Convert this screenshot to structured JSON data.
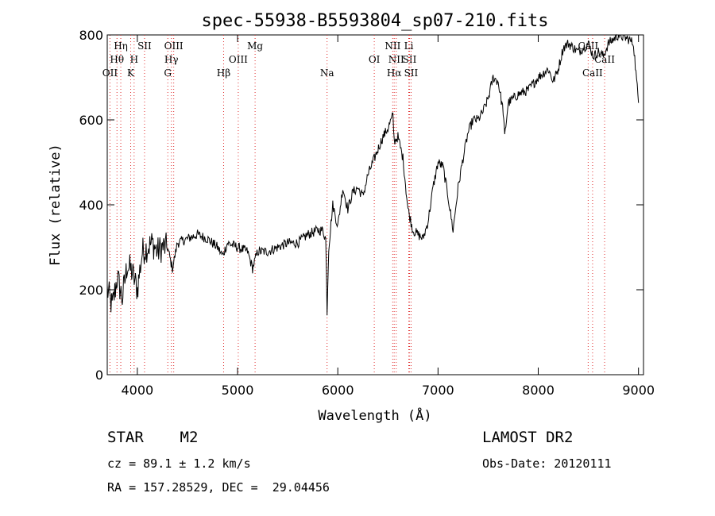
{
  "chart_data": {
    "type": "line",
    "title": "spec-55938-B5593804_sp07-210.fits",
    "xlabel": "Wavelength (Å)",
    "ylabel": "Flux (relative)",
    "xlim": [
      3700,
      9050
    ],
    "ylim": [
      0,
      800
    ],
    "xticks": [
      4000,
      5000,
      6000,
      7000,
      8000,
      9000
    ],
    "yticks": [
      0,
      200,
      400,
      600,
      800
    ],
    "grid": false,
    "legend": "none",
    "series": [
      {
        "x": [
          3700,
          3750,
          3800,
          3850,
          3900,
          3950,
          4000,
          4050,
          4100,
          4150,
          4200,
          4250,
          4300,
          4350,
          4400,
          4500,
          4600,
          4700,
          4800,
          4850,
          4900,
          5000,
          5100,
          5150,
          5175,
          5200,
          5300,
          5400,
          5500,
          5600,
          5700,
          5800,
          5850,
          5880,
          5893,
          5910,
          5950,
          6000,
          6050,
          6100,
          6150,
          6200,
          6250,
          6300,
          6400,
          6450,
          6500,
          6550,
          6563,
          6600,
          6650,
          6700,
          6750,
          6800,
          6850,
          6900,
          6950,
          7000,
          7050,
          7100,
          7150,
          7200,
          7250,
          7300,
          7350,
          7400,
          7450,
          7500,
          7550,
          7600,
          7650,
          7665,
          7700,
          7800,
          7900,
          8000,
          8100,
          8150,
          8200,
          8250,
          8300,
          8400,
          8500,
          8550,
          8600,
          8650,
          8700,
          8800,
          8900,
          8950,
          9000
        ],
        "y": [
          200,
          160,
          230,
          180,
          260,
          240,
          200,
          290,
          300,
          310,
          290,
          300,
          300,
          250,
          310,
          320,
          330,
          320,
          300,
          280,
          310,
          300,
          290,
          250,
          270,
          290,
          290,
          300,
          310,
          310,
          330,
          340,
          340,
          320,
          150,
          300,
          400,
          350,
          440,
          390,
          430,
          440,
          420,
          470,
          530,
          560,
          580,
          610,
          550,
          560,
          510,
          390,
          340,
          330,
          320,
          360,
          440,
          500,
          490,
          420,
          340,
          440,
          510,
          570,
          600,
          600,
          620,
          650,
          700,
          690,
          620,
          560,
          640,
          660,
          670,
          700,
          720,
          690,
          720,
          770,
          780,
          760,
          780,
          750,
          760,
          750,
          780,
          800,
          790,
          780,
          640
        ]
      }
    ],
    "line_markers": [
      {
        "label": "Hη",
        "x": 3835,
        "row": 1
      },
      {
        "label": "Hθ",
        "x": 3797,
        "row": 2
      },
      {
        "label": "OII",
        "x": 3727,
        "row": 3
      },
      {
        "label": "SII",
        "x": 4072,
        "row": 1
      },
      {
        "label": "H",
        "x": 3968,
        "row": 2
      },
      {
        "label": "K",
        "x": 3934,
        "row": 3
      },
      {
        "label": "OIII",
        "x": 4363,
        "row": 1
      },
      {
        "label": "Hγ",
        "x": 4340,
        "row": 2
      },
      {
        "label": "G",
        "x": 4304,
        "row": 3
      },
      {
        "label": "Mg",
        "x": 5175,
        "row": 1
      },
      {
        "label": "OIII",
        "x": 5007,
        "row": 2
      },
      {
        "label": "Hβ",
        "x": 4861,
        "row": 3
      },
      {
        "label": "Na",
        "x": 5893,
        "row": 3
      },
      {
        "label": "NII",
        "x": 6548,
        "row": 1
      },
      {
        "label": "Li",
        "x": 6708,
        "row": 1
      },
      {
        "label": "OI",
        "x": 6364,
        "row": 2
      },
      {
        "label": "NII",
        "x": 6583,
        "row": 2
      },
      {
        "label": "SII",
        "x": 6716,
        "row": 2
      },
      {
        "label": "Hα",
        "x": 6563,
        "row": 3
      },
      {
        "label": "SII",
        "x": 6731,
        "row": 3
      },
      {
        "label": "CaII",
        "x": 8498,
        "row": 1
      },
      {
        "label": "CaII",
        "x": 8662,
        "row": 2
      },
      {
        "label": "CaII",
        "x": 8542,
        "row": 3
      }
    ]
  },
  "info": {
    "object_class": "STAR    M2",
    "survey": "LAMOST DR2",
    "cz": "cz = 89.1 ± 1.2 km/s",
    "obs_date": "Obs-Date: 20120111",
    "ra_dec": "RA = 157.28529, DEC =  29.04456"
  }
}
